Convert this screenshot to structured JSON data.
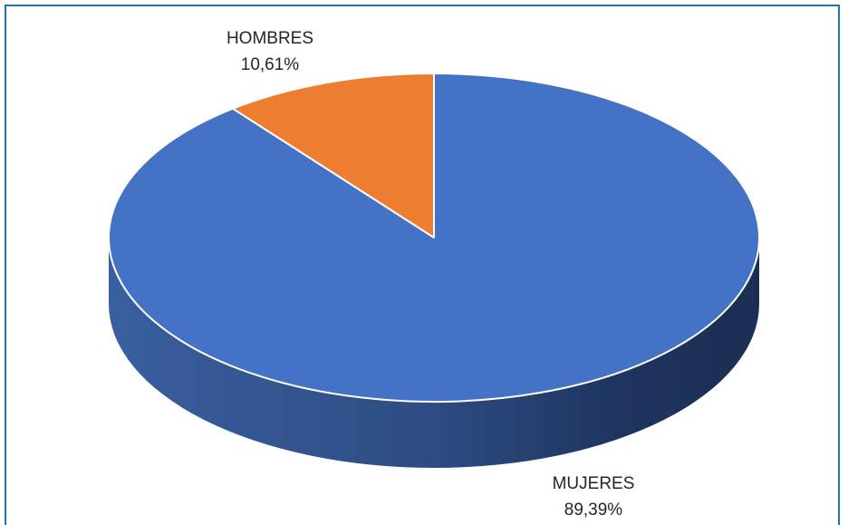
{
  "chart_data": {
    "type": "pie",
    "title": "",
    "slices": [
      {
        "name": "MUJERES",
        "value": 89.39,
        "label": "89,39%",
        "color": "#4472c4"
      },
      {
        "name": "HOMBRES",
        "value": 10.61,
        "label": "10,61%",
        "color": "#ed7d31"
      }
    ],
    "style": "3d",
    "legend": "none"
  }
}
